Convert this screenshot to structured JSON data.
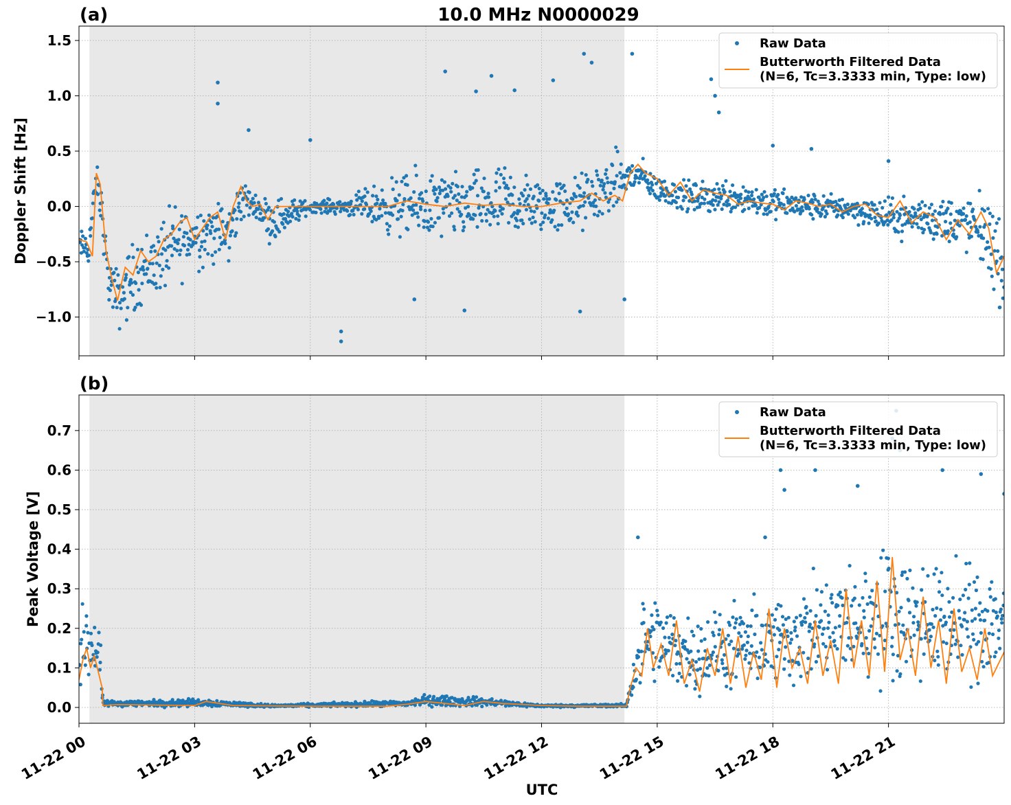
{
  "figure": {
    "title": "10.0 MHz N0000029",
    "xlabel": "UTC",
    "colors": {
      "raw": "#1f77b4",
      "filtered": "#ff7f0e",
      "night_shade": "#e8e8e8",
      "grid": "#b0b0b0"
    }
  },
  "chart_data": [
    {
      "type": "scatter",
      "panel_label": "(a)",
      "ylabel": "Doppler Shift [Hz]",
      "x_unit": "hours UTC since 11-22 00:00",
      "xlim": [
        0,
        24
      ],
      "ylim": [
        -1.35,
        1.63
      ],
      "yticks": [
        1.5,
        1.0,
        0.5,
        0.0,
        -0.5,
        -1.0
      ],
      "ytick_labels": [
        "1.5",
        "1.0",
        "0.5",
        "0.0",
        "−0.5",
        "−1.0"
      ],
      "night_shade_hours": [
        0.27,
        14.15
      ],
      "legend": {
        "position": "top-right",
        "entries": [
          {
            "label": "Raw Data"
          },
          {
            "label": "Butterworth Filtered Data",
            "label2": "(N=6, Tc=3.3333 min, Type: low)"
          }
        ]
      },
      "series": [
        {
          "name": "Raw Data",
          "kind": "scatter",
          "envelope": [
            {
              "x": 0.0,
              "lo": -0.5,
              "hi": -0.2
            },
            {
              "x": 0.25,
              "lo": -0.6,
              "hi": -0.15
            },
            {
              "x": 0.45,
              "lo": 0.05,
              "hi": 0.42
            },
            {
              "x": 0.6,
              "lo": -0.3,
              "hi": 0.2
            },
            {
              "x": 0.75,
              "lo": -0.9,
              "hi": -0.4
            },
            {
              "x": 1.0,
              "lo": -1.2,
              "hi": -0.5
            },
            {
              "x": 1.5,
              "lo": -1.0,
              "hi": -0.2
            },
            {
              "x": 2.0,
              "lo": -0.9,
              "hi": -0.1
            },
            {
              "x": 2.5,
              "lo": -0.8,
              "hi": 0.1
            },
            {
              "x": 3.0,
              "lo": -0.6,
              "hi": 0.1
            },
            {
              "x": 3.5,
              "lo": -0.6,
              "hi": 0.15
            },
            {
              "x": 3.9,
              "lo": -0.6,
              "hi": 0.05
            },
            {
              "x": 4.2,
              "lo": -0.2,
              "hi": 0.35
            },
            {
              "x": 4.6,
              "lo": -0.1,
              "hi": 0.1
            },
            {
              "x": 5.0,
              "lo": -0.4,
              "hi": 0.15
            },
            {
              "x": 6.0,
              "lo": -0.06,
              "hi": 0.06
            },
            {
              "x": 7.0,
              "lo": -0.1,
              "hi": 0.1
            },
            {
              "x": 8.0,
              "lo": -0.3,
              "hi": 0.3
            },
            {
              "x": 9.0,
              "lo": -0.4,
              "hi": 0.4
            },
            {
              "x": 10.0,
              "lo": -0.35,
              "hi": 0.35
            },
            {
              "x": 11.0,
              "lo": -0.4,
              "hi": 0.45
            },
            {
              "x": 12.0,
              "lo": -0.3,
              "hi": 0.3
            },
            {
              "x": 13.0,
              "lo": -0.3,
              "hi": 0.35
            },
            {
              "x": 14.0,
              "lo": -0.1,
              "hi": 0.55
            },
            {
              "x": 14.3,
              "lo": 0.05,
              "hi": 0.5
            },
            {
              "x": 14.6,
              "lo": 0.1,
              "hi": 0.45
            },
            {
              "x": 15.0,
              "lo": 0.0,
              "hi": 0.3
            },
            {
              "x": 16.0,
              "lo": -0.1,
              "hi": 0.25
            },
            {
              "x": 17.0,
              "lo": -0.1,
              "hi": 0.3
            },
            {
              "x": 18.0,
              "lo": -0.15,
              "hi": 0.2
            },
            {
              "x": 19.0,
              "lo": -0.15,
              "hi": 0.15
            },
            {
              "x": 20.0,
              "lo": -0.15,
              "hi": 0.12
            },
            {
              "x": 21.0,
              "lo": -0.3,
              "hi": 0.1
            },
            {
              "x": 22.0,
              "lo": -0.35,
              "hi": 0.15
            },
            {
              "x": 23.0,
              "lo": -0.45,
              "hi": 0.15
            },
            {
              "x": 23.6,
              "lo": -0.7,
              "hi": 0.18
            },
            {
              "x": 24.0,
              "lo": -1.1,
              "hi": -0.2
            }
          ],
          "outliers": [
            {
              "x": 3.6,
              "y": 1.12
            },
            {
              "x": 3.6,
              "y": 0.93
            },
            {
              "x": 4.4,
              "y": 0.69
            },
            {
              "x": 6.0,
              "y": 0.6
            },
            {
              "x": 6.8,
              "y": -1.13
            },
            {
              "x": 6.8,
              "y": -1.22
            },
            {
              "x": 9.5,
              "y": 1.22
            },
            {
              "x": 10.3,
              "y": 1.04
            },
            {
              "x": 10.7,
              "y": 1.18
            },
            {
              "x": 11.3,
              "y": 1.05
            },
            {
              "x": 12.3,
              "y": 1.14
            },
            {
              "x": 13.1,
              "y": 1.38
            },
            {
              "x": 13.3,
              "y": 1.3
            },
            {
              "x": 14.15,
              "y": -0.84
            },
            {
              "x": 14.35,
              "y": 1.38
            },
            {
              "x": 16.5,
              "y": 1.0
            },
            {
              "x": 16.6,
              "y": 0.85
            },
            {
              "x": 18.0,
              "y": 0.55
            },
            {
              "x": 19.0,
              "y": 0.52
            },
            {
              "x": 21.0,
              "y": 0.41
            },
            {
              "x": 8.7,
              "y": -0.84
            },
            {
              "x": 10.0,
              "y": -0.94
            },
            {
              "x": 13.0,
              "y": -0.95
            },
            {
              "x": 16.4,
              "y": 1.15
            }
          ]
        },
        {
          "name": "Butterworth Filtered Data",
          "kind": "line",
          "x": [
            0.0,
            0.2,
            0.35,
            0.45,
            0.55,
            0.7,
            0.85,
            1.0,
            1.2,
            1.4,
            1.6,
            1.8,
            2.0,
            2.2,
            2.4,
            2.6,
            2.8,
            3.0,
            3.2,
            3.4,
            3.6,
            3.8,
            4.0,
            4.2,
            4.35,
            4.5,
            4.7,
            4.9,
            5.1,
            5.5,
            6.0,
            6.5,
            7.0,
            7.5,
            8.0,
            8.5,
            9.0,
            9.5,
            10.0,
            10.5,
            11.0,
            11.5,
            12.0,
            12.5,
            13.0,
            13.3,
            13.6,
            13.9,
            14.1,
            14.3,
            14.5,
            14.7,
            15.0,
            15.3,
            15.6,
            15.9,
            16.2,
            16.5,
            16.8,
            17.1,
            17.4,
            17.7,
            18.0,
            18.3,
            18.6,
            18.9,
            19.2,
            19.5,
            19.8,
            20.1,
            20.4,
            20.7,
            21.0,
            21.3,
            21.6,
            21.9,
            22.2,
            22.5,
            22.8,
            23.1,
            23.4,
            23.6,
            23.8,
            24.0
          ],
          "y": [
            -0.3,
            -0.32,
            -0.45,
            0.3,
            0.2,
            -0.4,
            -0.65,
            -0.85,
            -0.55,
            -0.62,
            -0.4,
            -0.5,
            -0.45,
            -0.3,
            -0.25,
            -0.15,
            -0.1,
            -0.3,
            -0.2,
            -0.1,
            -0.05,
            -0.3,
            0.0,
            0.18,
            0.05,
            0.0,
            0.02,
            -0.12,
            0.0,
            0.0,
            0.0,
            0.0,
            0.0,
            0.0,
            0.0,
            0.05,
            0.02,
            0.0,
            0.03,
            0.01,
            0.02,
            0.0,
            0.0,
            0.03,
            0.05,
            0.12,
            0.05,
            0.1,
            0.05,
            0.3,
            0.38,
            0.3,
            0.25,
            0.1,
            0.22,
            0.05,
            0.15,
            0.12,
            0.1,
            0.02,
            0.05,
            0.03,
            0.02,
            -0.03,
            0.05,
            0.03,
            0.0,
            0.02,
            -0.05,
            0.0,
            0.02,
            -0.08,
            -0.1,
            0.05,
            -0.15,
            -0.05,
            -0.1,
            -0.3,
            -0.12,
            -0.25,
            -0.05,
            -0.2,
            -0.6,
            -0.45
          ]
        }
      ]
    },
    {
      "type": "scatter",
      "panel_label": "(b)",
      "ylabel": "Peak Voltage [V]",
      "x_unit": "hours UTC since 11-22 00:00",
      "xlim": [
        0,
        24
      ],
      "ylim": [
        -0.04,
        0.79
      ],
      "yticks": [
        0.7,
        0.6,
        0.5,
        0.4,
        0.3,
        0.2,
        0.1,
        0.0
      ],
      "ytick_labels": [
        "0.7",
        "0.6",
        "0.5",
        "0.4",
        "0.3",
        "0.2",
        "0.1",
        "0.0"
      ],
      "xticks": [
        0,
        3,
        6,
        9,
        12,
        15,
        18,
        21
      ],
      "xtick_labels": [
        "11-22 00",
        "11-22 03",
        "11-22 06",
        "11-22 09",
        "11-22 12",
        "11-22 15",
        "11-22 18",
        "11-22 21"
      ],
      "night_shade_hours": [
        0.27,
        14.15
      ],
      "legend": {
        "position": "top-right",
        "entries": [
          {
            "label": "Raw Data"
          },
          {
            "label": "Butterworth Filtered Data",
            "label2": "(N=6, Tc=3.3333 min, Type: low)"
          }
        ]
      },
      "series": [
        {
          "name": "Raw Data",
          "kind": "scatter",
          "envelope": [
            {
              "x": 0.0,
              "lo": 0.02,
              "hi": 0.2
            },
            {
              "x": 0.15,
              "lo": 0.04,
              "hi": 0.32
            },
            {
              "x": 0.35,
              "lo": 0.05,
              "hi": 0.26
            },
            {
              "x": 0.55,
              "lo": 0.03,
              "hi": 0.2
            },
            {
              "x": 0.62,
              "lo": 0.0,
              "hi": 0.02
            },
            {
              "x": 1.5,
              "lo": 0.0,
              "hi": 0.02
            },
            {
              "x": 3.2,
              "lo": 0.0,
              "hi": 0.025
            },
            {
              "x": 5.0,
              "lo": 0.0,
              "hi": 0.008
            },
            {
              "x": 8.5,
              "lo": 0.0,
              "hi": 0.02
            },
            {
              "x": 9.0,
              "lo": 0.0,
              "hi": 0.035
            },
            {
              "x": 10.5,
              "lo": 0.0,
              "hi": 0.028
            },
            {
              "x": 12.0,
              "lo": 0.0,
              "hi": 0.008
            },
            {
              "x": 14.2,
              "lo": 0.0,
              "hi": 0.01
            },
            {
              "x": 14.4,
              "lo": 0.02,
              "hi": 0.15
            },
            {
              "x": 14.6,
              "lo": 0.03,
              "hi": 0.3
            },
            {
              "x": 15.0,
              "lo": 0.02,
              "hi": 0.3
            },
            {
              "x": 16.0,
              "lo": 0.02,
              "hi": 0.25
            },
            {
              "x": 17.0,
              "lo": 0.02,
              "hi": 0.28
            },
            {
              "x": 18.0,
              "lo": 0.03,
              "hi": 0.3
            },
            {
              "x": 19.0,
              "lo": 0.03,
              "hi": 0.35
            },
            {
              "x": 20.0,
              "lo": 0.04,
              "hi": 0.38
            },
            {
              "x": 21.0,
              "lo": 0.04,
              "hi": 0.45
            },
            {
              "x": 22.0,
              "lo": 0.04,
              "hi": 0.4
            },
            {
              "x": 23.0,
              "lo": 0.04,
              "hi": 0.38
            },
            {
              "x": 24.0,
              "lo": 0.04,
              "hi": 0.42
            }
          ],
          "outliers": [
            {
              "x": 14.5,
              "y": 0.43
            },
            {
              "x": 18.2,
              "y": 0.6
            },
            {
              "x": 18.3,
              "y": 0.55
            },
            {
              "x": 19.1,
              "y": 0.6
            },
            {
              "x": 21.2,
              "y": 0.75
            },
            {
              "x": 21.1,
              "y": 0.68
            },
            {
              "x": 21.3,
              "y": 0.65
            },
            {
              "x": 22.4,
              "y": 0.6
            },
            {
              "x": 23.4,
              "y": 0.59
            },
            {
              "x": 24.0,
              "y": 0.54
            },
            {
              "x": 20.2,
              "y": 0.56
            },
            {
              "x": 17.8,
              "y": 0.43
            }
          ]
        },
        {
          "name": "Butterworth Filtered Data",
          "kind": "line",
          "x": [
            0.0,
            0.1,
            0.2,
            0.3,
            0.4,
            0.5,
            0.6,
            0.62,
            1.0,
            2.0,
            3.0,
            3.3,
            4.0,
            5.0,
            6.0,
            7.0,
            8.0,
            8.5,
            9.0,
            9.5,
            10.0,
            10.5,
            11.0,
            12.0,
            13.0,
            14.0,
            14.2,
            14.3,
            14.45,
            14.6,
            14.75,
            14.9,
            15.1,
            15.3,
            15.5,
            15.7,
            15.9,
            16.1,
            16.3,
            16.5,
            16.7,
            16.9,
            17.1,
            17.3,
            17.5,
            17.7,
            17.9,
            18.1,
            18.3,
            18.5,
            18.7,
            18.9,
            19.1,
            19.3,
            19.5,
            19.7,
            19.9,
            20.1,
            20.3,
            20.5,
            20.7,
            20.9,
            21.1,
            21.3,
            21.5,
            21.7,
            21.9,
            22.1,
            22.3,
            22.5,
            22.7,
            22.9,
            23.1,
            23.3,
            23.5,
            23.7,
            23.9,
            24.0
          ],
          "y": [
            0.07,
            0.12,
            0.15,
            0.1,
            0.13,
            0.09,
            0.05,
            0.005,
            0.007,
            0.006,
            0.005,
            0.015,
            0.005,
            0.004,
            0.003,
            0.003,
            0.003,
            0.008,
            0.015,
            0.01,
            0.005,
            0.015,
            0.01,
            0.005,
            0.003,
            0.003,
            0.003,
            0.05,
            0.1,
            0.08,
            0.2,
            0.1,
            0.16,
            0.08,
            0.22,
            0.06,
            0.12,
            0.04,
            0.15,
            0.08,
            0.2,
            0.06,
            0.18,
            0.05,
            0.14,
            0.07,
            0.25,
            0.05,
            0.2,
            0.1,
            0.15,
            0.06,
            0.22,
            0.08,
            0.17,
            0.06,
            0.3,
            0.1,
            0.22,
            0.08,
            0.32,
            0.09,
            0.38,
            0.12,
            0.2,
            0.08,
            0.28,
            0.1,
            0.22,
            0.06,
            0.25,
            0.09,
            0.15,
            0.07,
            0.2,
            0.08,
            0.12,
            0.14
          ]
        }
      ]
    }
  ]
}
